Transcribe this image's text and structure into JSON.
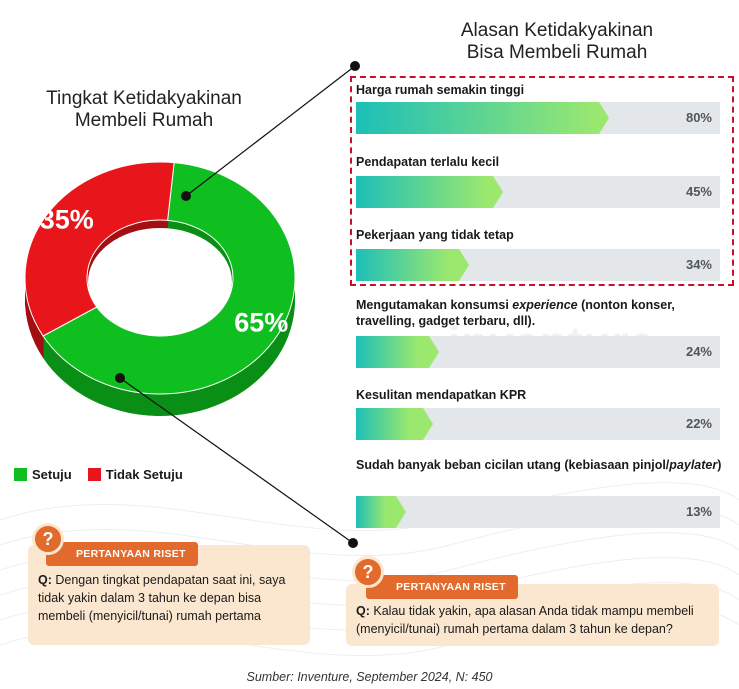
{
  "chart_data": [
    {
      "type": "pie",
      "title": "Tingkat Ketidakyakinan Membeli Rumah",
      "labels": [
        "Setuju",
        "Tidak Setuju"
      ],
      "values": [
        65,
        35
      ],
      "value_labels": [
        "65%",
        "35%"
      ],
      "colors": [
        "#0fbf1f",
        "#e8161b"
      ],
      "legend": "bottom-left"
    },
    {
      "type": "bar",
      "orientation": "horizontal",
      "title": "Alasan Ketidakyakinan Bisa Membeli Rumah",
      "categories": [
        "Harga rumah semakin tinggi",
        "Pendapatan terlalu kecil",
        "Pekerjaan yang tidak tetap",
        "Mengutamakan konsumsi experience (nonton konser, travelling, gadget terbaru, dll).",
        "Kesulitan mendapatkan KPR",
        "Sudah banyak beban cicilan utang (kebiasaan pinjol/paylater)"
      ],
      "values": [
        80,
        45,
        34,
        24,
        22,
        13
      ],
      "value_labels": [
        "80%",
        "45%",
        "34%",
        "24%",
        "22%",
        "13%"
      ],
      "xlim": [
        0,
        100
      ],
      "highlighted_top": 3
    }
  ],
  "display": {
    "left_title": [
      "Tingkat Ketidakyakinan",
      "Membeli Rumah"
    ],
    "right_title": [
      "Alasan Ketidakyakinan",
      "Bisa Membeli Rumah"
    ],
    "reason_labels": [
      {
        "pre": "Harga rumah semakin tinggi",
        "em": "",
        "post": ""
      },
      {
        "pre": "Pendapatan terlalu kecil",
        "em": "",
        "post": ""
      },
      {
        "pre": "Pekerjaan yang tidak tetap",
        "em": "",
        "post": ""
      },
      {
        "pre": "Mengutamakan konsumsi ",
        "em": "experience",
        "post": " (nonton konser, travelling, gadget terbaru, dll)."
      },
      {
        "pre": "Kesulitan mendapatkan KPR",
        "em": "",
        "post": ""
      },
      {
        "pre": "Sudah banyak beban cicilan utang (kebiasaan pinjol/",
        "em": "paylater",
        "post": ")"
      }
    ],
    "legend": {
      "setuju": "Setuju",
      "tidak_setuju": "Tidak Setuju"
    },
    "watermark": "inventure"
  },
  "questions": {
    "left": {
      "badge": "PERTANYAAN RISET",
      "prefix": "Q:",
      "text": "Dengan tingkat pendapatan saat ini, saya tidak yakin dalam 3 tahun ke depan bisa membeli (menyicil/tunai) rumah pertama"
    },
    "right": {
      "badge": "PERTANYAAN RISET",
      "prefix": "Q:",
      "text": "Kalau tidak yakin, apa alasan Anda tidak mampu membeli (menyicil/tunai) rumah pertama dalam 3 tahun ke depan?"
    }
  },
  "source": "Sumber: Inventure, September 2024, N: 450",
  "colors": {
    "setuju": "#0fbf1f",
    "tidak_setuju": "#e8161b",
    "bar_start": "#1dbfb8",
    "bar_end": "#9be86f",
    "track": "#e3e7ea",
    "accent": "#e26a2c",
    "card": "#fbe7cf",
    "highlight": "#c8102e"
  }
}
